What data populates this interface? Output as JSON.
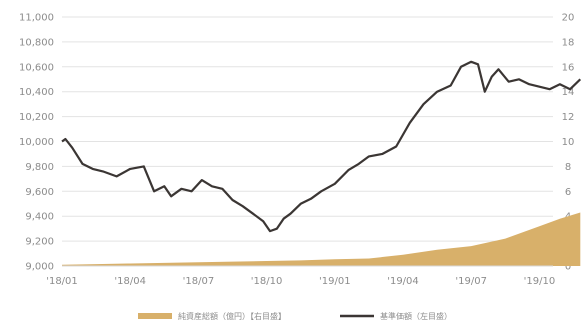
{
  "chart_data": {
    "type": "line",
    "x_categories": [
      "'18/01",
      "'18/04",
      "'18/07",
      "'18/10",
      "'19/01",
      "'19/04",
      "'19/07",
      "'19/10"
    ],
    "y_left": {
      "min": 9000,
      "max": 11000,
      "ticks": [
        "9,000",
        "9,200",
        "9,400",
        "9,600",
        "9,800",
        "10,000",
        "10,200",
        "10,400",
        "10,600",
        "10,800",
        "11,000"
      ]
    },
    "y_right": {
      "min": 0,
      "max": 20,
      "ticks": [
        "0",
        "2",
        "4",
        "6",
        "8",
        "10",
        "12",
        "14",
        "16",
        "18",
        "20"
      ]
    },
    "grid": true,
    "legend_position": "bottom",
    "series": [
      {
        "name": "純資産総額（億円）【右目盛】",
        "type": "area",
        "axis": "right",
        "color": "#d8b06a",
        "x": [
          0,
          0.5,
          1,
          1.5,
          2,
          2.5,
          3,
          3.5,
          4,
          4.5,
          5,
          5.5,
          6,
          6.5,
          7,
          7.3,
          7.6
        ],
        "values": [
          0.1,
          0.15,
          0.2,
          0.25,
          0.3,
          0.35,
          0.4,
          0.45,
          0.55,
          0.6,
          0.9,
          1.3,
          1.6,
          2.2,
          3.2,
          3.8,
          4.3
        ]
      },
      {
        "name": "基準価額（左目盛）",
        "type": "line",
        "axis": "left",
        "color": "#3b3634",
        "x": [
          0,
          0.05,
          0.15,
          0.3,
          0.45,
          0.6,
          0.8,
          1,
          1.2,
          1.35,
          1.5,
          1.6,
          1.75,
          1.9,
          2.05,
          2.2,
          2.35,
          2.5,
          2.65,
          2.8,
          2.95,
          3.05,
          3.15,
          3.25,
          3.35,
          3.5,
          3.65,
          3.8,
          4,
          4.2,
          4.35,
          4.5,
          4.7,
          4.9,
          5.1,
          5.3,
          5.5,
          5.7,
          5.85,
          6,
          6.1,
          6.2,
          6.3,
          6.4,
          6.55,
          6.7,
          6.85,
          7,
          7.15,
          7.3,
          7.45,
          7.6
        ],
        "values": [
          10000,
          10020,
          9950,
          9820,
          9780,
          9760,
          9720,
          9780,
          9800,
          9600,
          9640,
          9560,
          9620,
          9600,
          9690,
          9640,
          9620,
          9530,
          9480,
          9420,
          9360,
          9280,
          9300,
          9380,
          9420,
          9500,
          9540,
          9600,
          9660,
          9770,
          9820,
          9880,
          9900,
          9960,
          10150,
          10300,
          10400,
          10450,
          10600,
          10640,
          10620,
          10400,
          10520,
          10580,
          10480,
          10500,
          10460,
          10440,
          10420,
          10460,
          10420,
          10500
        ]
      }
    ]
  }
}
